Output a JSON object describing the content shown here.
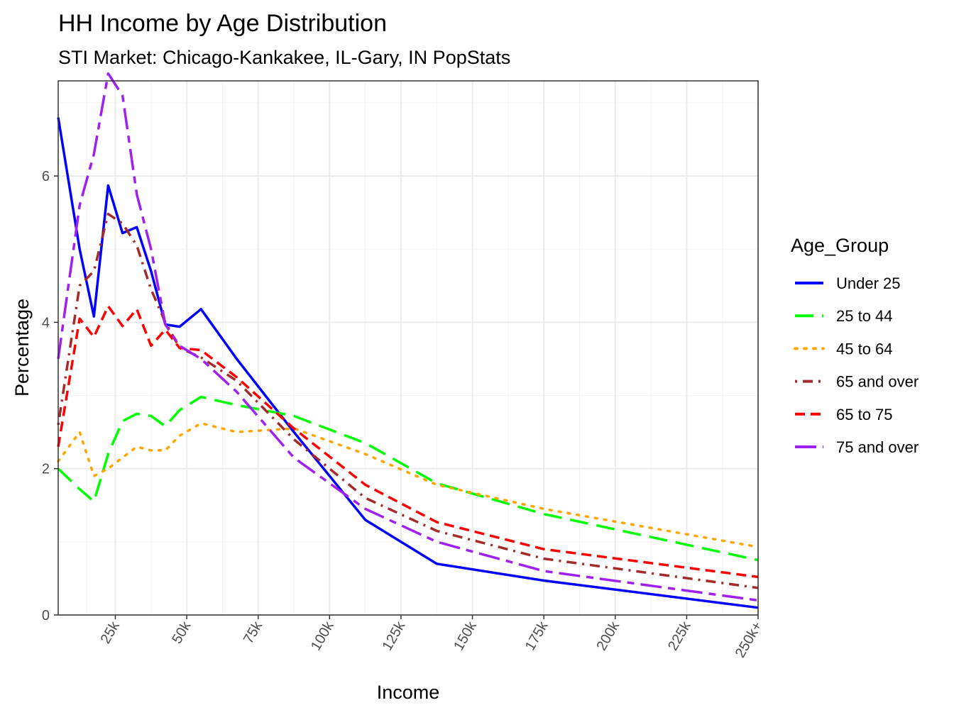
{
  "chart_data": {
    "type": "line",
    "title": "HH Income by Age Distribution",
    "subtitle": "STI Market: Chicago-Kankakee, IL-Gary, IN PopStats",
    "xlabel": "Income",
    "ylabel": "Percentage",
    "grid": true,
    "legend_title": "Age_Group",
    "legend_position": "right",
    "x_unit": "income (thousands)",
    "xlim": [
      5,
      250
    ],
    "ylim": [
      0,
      7.3
    ],
    "x_ticks": [
      {
        "value": 25,
        "label": "25k"
      },
      {
        "value": 50,
        "label": "50k"
      },
      {
        "value": 75,
        "label": "75k"
      },
      {
        "value": 100,
        "label": "100k"
      },
      {
        "value": 125,
        "label": "125k"
      },
      {
        "value": 150,
        "label": "150k"
      },
      {
        "value": 175,
        "label": "175k"
      },
      {
        "value": 200,
        "label": "200k"
      },
      {
        "value": 225,
        "label": "225k"
      },
      {
        "value": 250,
        "label": "250k+"
      }
    ],
    "y_ticks": [
      {
        "value": 0,
        "label": "0"
      },
      {
        "value": 2,
        "label": "2"
      },
      {
        "value": 4,
        "label": "4"
      },
      {
        "value": 6,
        "label": "6"
      }
    ],
    "x": [
      5,
      12.5,
      17.5,
      22.5,
      27.5,
      32.5,
      37.5,
      42.5,
      47.5,
      55,
      67.5,
      87.5,
      112.5,
      137.5,
      175,
      250
    ],
    "series": [
      {
        "name": "Under 25",
        "color": "#0000ff",
        "dash": "solid",
        "values": [
          6.8,
          5.0,
          4.08,
          5.87,
          5.22,
          5.3,
          4.7,
          3.97,
          3.94,
          4.18,
          3.5,
          2.5,
          1.3,
          0.7,
          0.47,
          0.1
        ]
      },
      {
        "name": "25 to 44",
        "color": "#00ff00",
        "dash": "longdash",
        "values": [
          2.0,
          1.72,
          1.55,
          2.2,
          2.65,
          2.75,
          2.72,
          2.58,
          2.8,
          2.98,
          2.87,
          2.72,
          2.35,
          1.8,
          1.38,
          0.75
        ]
      },
      {
        "name": "45 to 64",
        "color": "#ffa500",
        "dash": "dotted",
        "values": [
          2.1,
          2.5,
          1.9,
          2.0,
          2.15,
          2.3,
          2.25,
          2.25,
          2.45,
          2.62,
          2.5,
          2.55,
          2.2,
          1.78,
          1.45,
          0.93
        ]
      },
      {
        "name": "65 and over",
        "color": "#a52a2a",
        "dash": "dotdash",
        "values": [
          2.6,
          4.5,
          4.7,
          5.48,
          5.35,
          5.05,
          4.45,
          4.0,
          3.65,
          3.52,
          3.2,
          2.4,
          1.6,
          1.15,
          0.77,
          0.37
        ]
      },
      {
        "name": "65 to 75",
        "color": "#ff0000",
        "dash": "dashed",
        "values": [
          2.3,
          4.05,
          3.8,
          4.22,
          3.95,
          4.18,
          3.68,
          3.9,
          3.65,
          3.62,
          3.25,
          2.55,
          1.78,
          1.27,
          0.9,
          0.52
        ]
      },
      {
        "name": "75 and over",
        "color": "#a020f0",
        "dash": "twodash",
        "values": [
          3.5,
          5.6,
          6.3,
          7.4,
          7.1,
          5.75,
          5.0,
          3.97,
          3.68,
          3.5,
          3.05,
          2.15,
          1.45,
          1.0,
          0.6,
          0.2
        ]
      }
    ]
  }
}
